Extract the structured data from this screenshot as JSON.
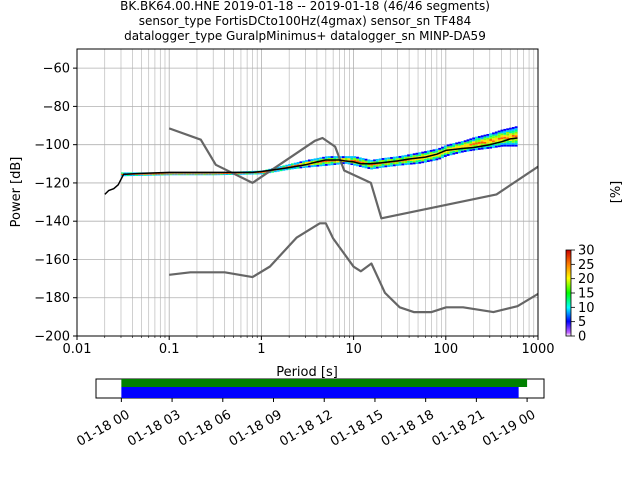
{
  "title_lines": [
    "BK.BK64.00.HNE   2019-01-18 -- 2019-01-18  (46/46 segments)",
    "sensor_type FortisDCto100Hz(4gmax) sensor_sn TF484",
    "datalogger_type GuralpMinimus+ datalogger_sn MINP-DA59"
  ],
  "chart_data": [
    {
      "type": "heatmap",
      "title": "BK.BK64.00.HNE   2019-01-18 -- 2019-01-18  (46/46 segments)",
      "xlabel": "Period [s]",
      "ylabel": "Power [dB]",
      "xscale": "log",
      "xlim": [
        0.01,
        1000
      ],
      "ylim": [
        -200,
        -50
      ],
      "x_ticks": [
        0.01,
        0.1,
        1,
        10,
        100,
        1000
      ],
      "x_tick_labels": [
        "0.01",
        "0.1",
        "1",
        "10",
        "100",
        "1000"
      ],
      "y_ticks": [
        -200,
        -180,
        -160,
        -140,
        -120,
        -100,
        -80,
        -60
      ],
      "y_tick_labels": [
        "−200",
        "−180",
        "−160",
        "−140",
        "−120",
        "−100",
        "−80",
        "−60"
      ],
      "grid": true,
      "colorbar": {
        "label": "[%]",
        "range": [
          0,
          30
        ],
        "ticks": [
          0,
          5,
          10,
          15,
          20,
          25,
          30
        ],
        "colormap": "pqlx"
      },
      "noise_model_high": {
        "x": [
          0.1,
          0.22,
          0.32,
          0.8,
          3.8,
          4.6,
          6.3,
          7.9,
          15.4,
          20,
          354.8,
          1000
        ],
        "y": [
          -91.5,
          -97.4,
          -110.5,
          -120,
          -98,
          -96.5,
          -101,
          -113.5,
          -120,
          -138.5,
          -126,
          -111.5
        ]
      },
      "noise_model_low": {
        "x": [
          0.1,
          0.17,
          0.4,
          0.8,
          1.24,
          2.4,
          4.3,
          5,
          6,
          10,
          12,
          15.6,
          21.9,
          31.6,
          45,
          70,
          101,
          154,
          328,
          600,
          1000
        ],
        "y": [
          -168,
          -166.7,
          -166.7,
          -169.2,
          -163.7,
          -148.6,
          -141.1,
          -141.1,
          -149,
          -163.8,
          -166.2,
          -162.1,
          -177.5,
          -185,
          -187.5,
          -187.5,
          -185,
          -185,
          -187.5,
          -184.4,
          -178
        ]
      },
      "mode_line": {
        "x": [
          0.02,
          0.022,
          0.025,
          0.028,
          0.032,
          0.05,
          0.1,
          0.2,
          0.4,
          0.8,
          1,
          2,
          3,
          4,
          5,
          6,
          7,
          8,
          10,
          12,
          15,
          20,
          30,
          40,
          60,
          80,
          100,
          150,
          200,
          300,
          400,
          500,
          600
        ],
        "y": [
          -126,
          -124,
          -123,
          -121,
          -115.5,
          -115,
          -114.5,
          -114.5,
          -114.5,
          -114.5,
          -114,
          -112,
          -110.5,
          -109,
          -108,
          -108,
          -108,
          -108.5,
          -109,
          -110,
          -110,
          -109.5,
          -108.5,
          -107.5,
          -106.5,
          -105,
          -103,
          -102,
          -101.5,
          -100,
          -98.5,
          -97,
          -96.5
        ]
      },
      "psd_band": {
        "x": [
          0.03,
          0.1,
          0.3,
          1,
          2,
          3,
          5,
          8,
          10,
          15,
          20,
          30,
          50,
          80,
          100,
          150,
          200,
          300,
          400,
          500,
          600
        ],
        "ymin": [
          -116.5,
          -116,
          -116,
          -115.5,
          -113,
          -112,
          -111,
          -110,
          -111,
          -113,
          -112,
          -111,
          -110,
          -108,
          -106,
          -104,
          -103,
          -102,
          -101,
          -101,
          -101
        ],
        "ymax": [
          -114.5,
          -114.5,
          -114.5,
          -113.5,
          -110,
          -108,
          -106,
          -106,
          -106,
          -108,
          -107,
          -106,
          -104,
          -102,
          -100,
          -98,
          -96,
          -94,
          -92,
          -91,
          -90
        ]
      }
    },
    {
      "type": "timeline",
      "title": "",
      "tick_labels": [
        "01-18 00",
        "01-18 03",
        "01-18 06",
        "01-18 09",
        "01-18 12",
        "01-18 15",
        "01-18 18",
        "01-18 21",
        "01-19 00"
      ],
      "xlim_hours": [
        -1.5,
        25
      ],
      "coverage_green": [
        0,
        24
      ],
      "coverage_blue": [
        0,
        23.5
      ]
    }
  ],
  "colors": {
    "noise_model": "#666666",
    "mode_line": "#000000",
    "coverage_green": "#008000",
    "coverage_blue": "#0000ff",
    "grid": "#b0b0b0"
  }
}
